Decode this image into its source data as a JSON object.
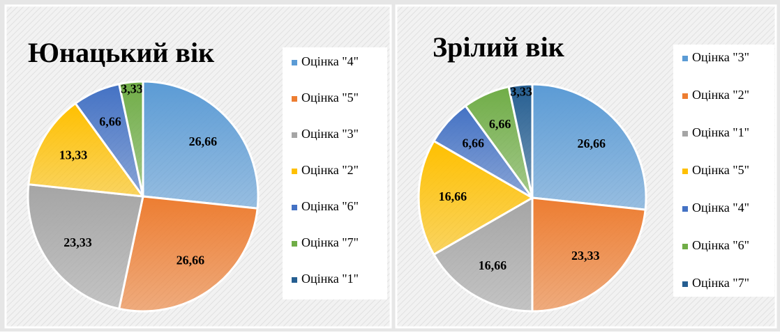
{
  "chart_data": [
    {
      "type": "pie",
      "title": "Юнацький вік",
      "categories": [
        "Оцінка \"4\"",
        "Оцінка \"5\"",
        "Оцінка \"3\"",
        "Оцінка \"2\"",
        "Оцінка \"6\"",
        "Оцінка \"7\"",
        "Оцінка \"1\""
      ],
      "values": [
        26.66,
        26.66,
        23.33,
        13.33,
        6.66,
        3.33,
        0
      ],
      "value_labels": [
        "26,66",
        "26,66",
        "23,33",
        "13,33",
        "6,66",
        "3,33",
        null
      ],
      "colors": [
        "#5b9bd5",
        "#ed7d31",
        "#a5a5a5",
        "#ffc000",
        "#4472c4",
        "#70ad47",
        "#255e91"
      ]
    },
    {
      "type": "pie",
      "title": "Зрілий вік",
      "categories": [
        "Оцінка \"3\"",
        "Оцінка \"2\"",
        "Оцінка \"1\"",
        "Оцінка \"5\"",
        "Оцінка \"4\"",
        "Оцінка \"6\"",
        "Оцінка \"7\""
      ],
      "values": [
        26.66,
        23.33,
        16.66,
        16.66,
        6.66,
        6.66,
        3.33
      ],
      "value_labels": [
        "26,66",
        "23,33",
        "16,66",
        "16,66",
        "6,66",
        "6,66",
        "3,33"
      ],
      "colors": [
        "#5b9bd5",
        "#ed7d31",
        "#a5a5a5",
        "#ffc000",
        "#4472c4",
        "#70ad47",
        "#255e91"
      ]
    }
  ]
}
